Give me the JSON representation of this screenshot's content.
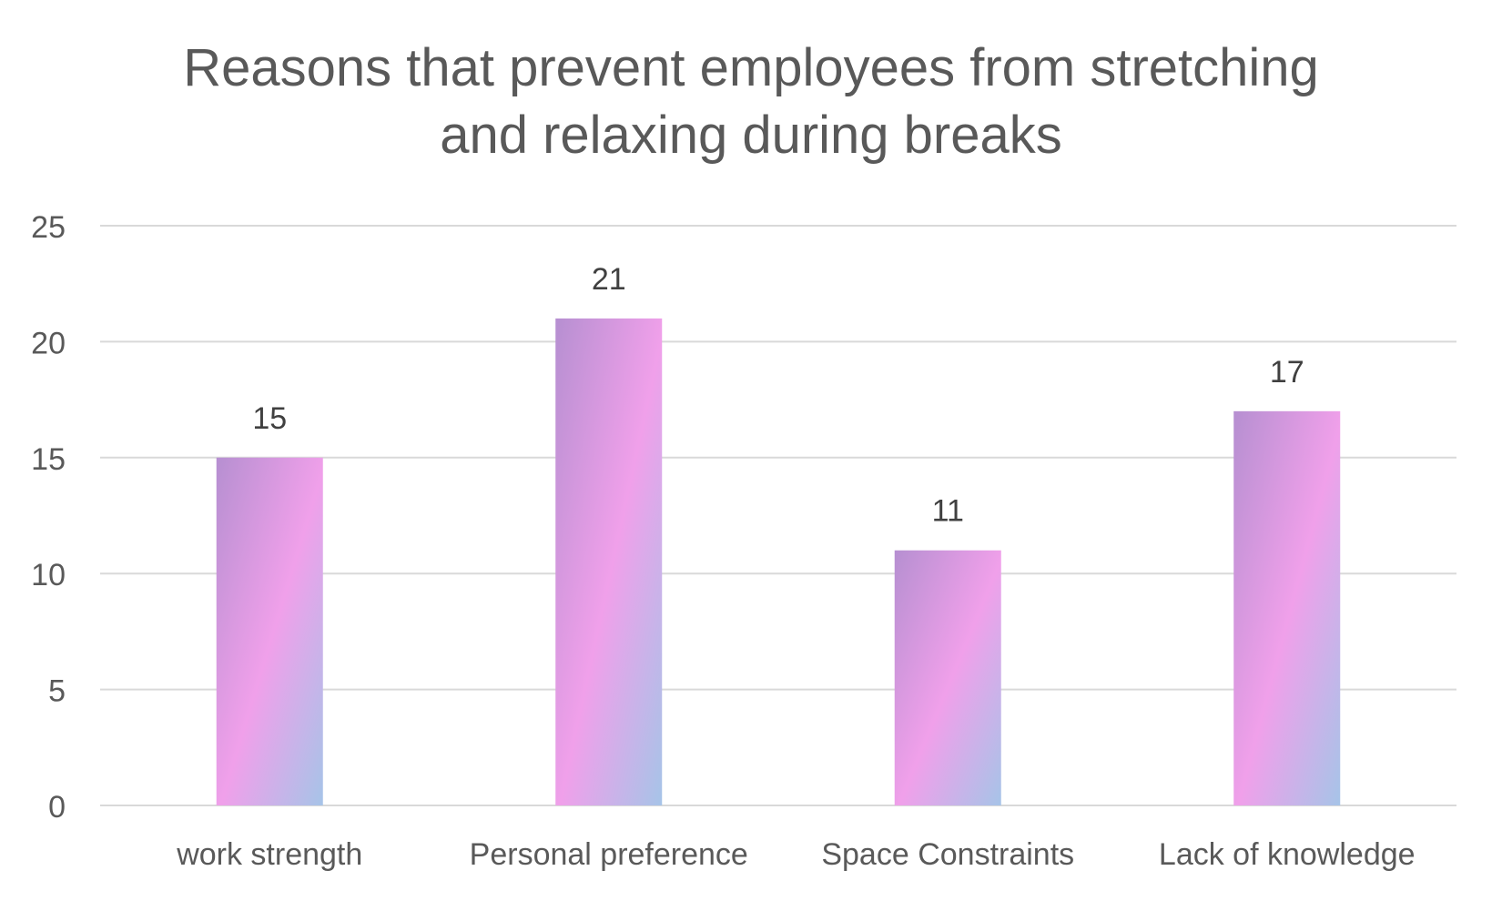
{
  "chart_data": {
    "type": "bar",
    "title_lines": [
      "Reasons that prevent employees from stretching",
      "and relaxing during breaks"
    ],
    "categories": [
      "work strength",
      "Personal preference",
      "Space Constraints",
      "Lack of knowledge"
    ],
    "values": [
      15,
      21,
      11,
      17
    ],
    "data_labels": [
      "15",
      "21",
      "11",
      "17"
    ],
    "ylim": [
      0,
      25
    ],
    "y_ticks": [
      0,
      5,
      10,
      15,
      20,
      25
    ],
    "y_tick_labels": [
      "0",
      "5",
      "10",
      "15",
      "20",
      "25"
    ],
    "xlabel": "",
    "ylabel": "",
    "grid": true,
    "legend": "none",
    "colors": {
      "bar_gradient": [
        "#b68fd1",
        "#f0a0ea",
        "#a6c4e8"
      ],
      "gridline": "#d9d9d9",
      "axis_text": "#595959",
      "data_label": "#404040",
      "title": "#595959"
    }
  }
}
